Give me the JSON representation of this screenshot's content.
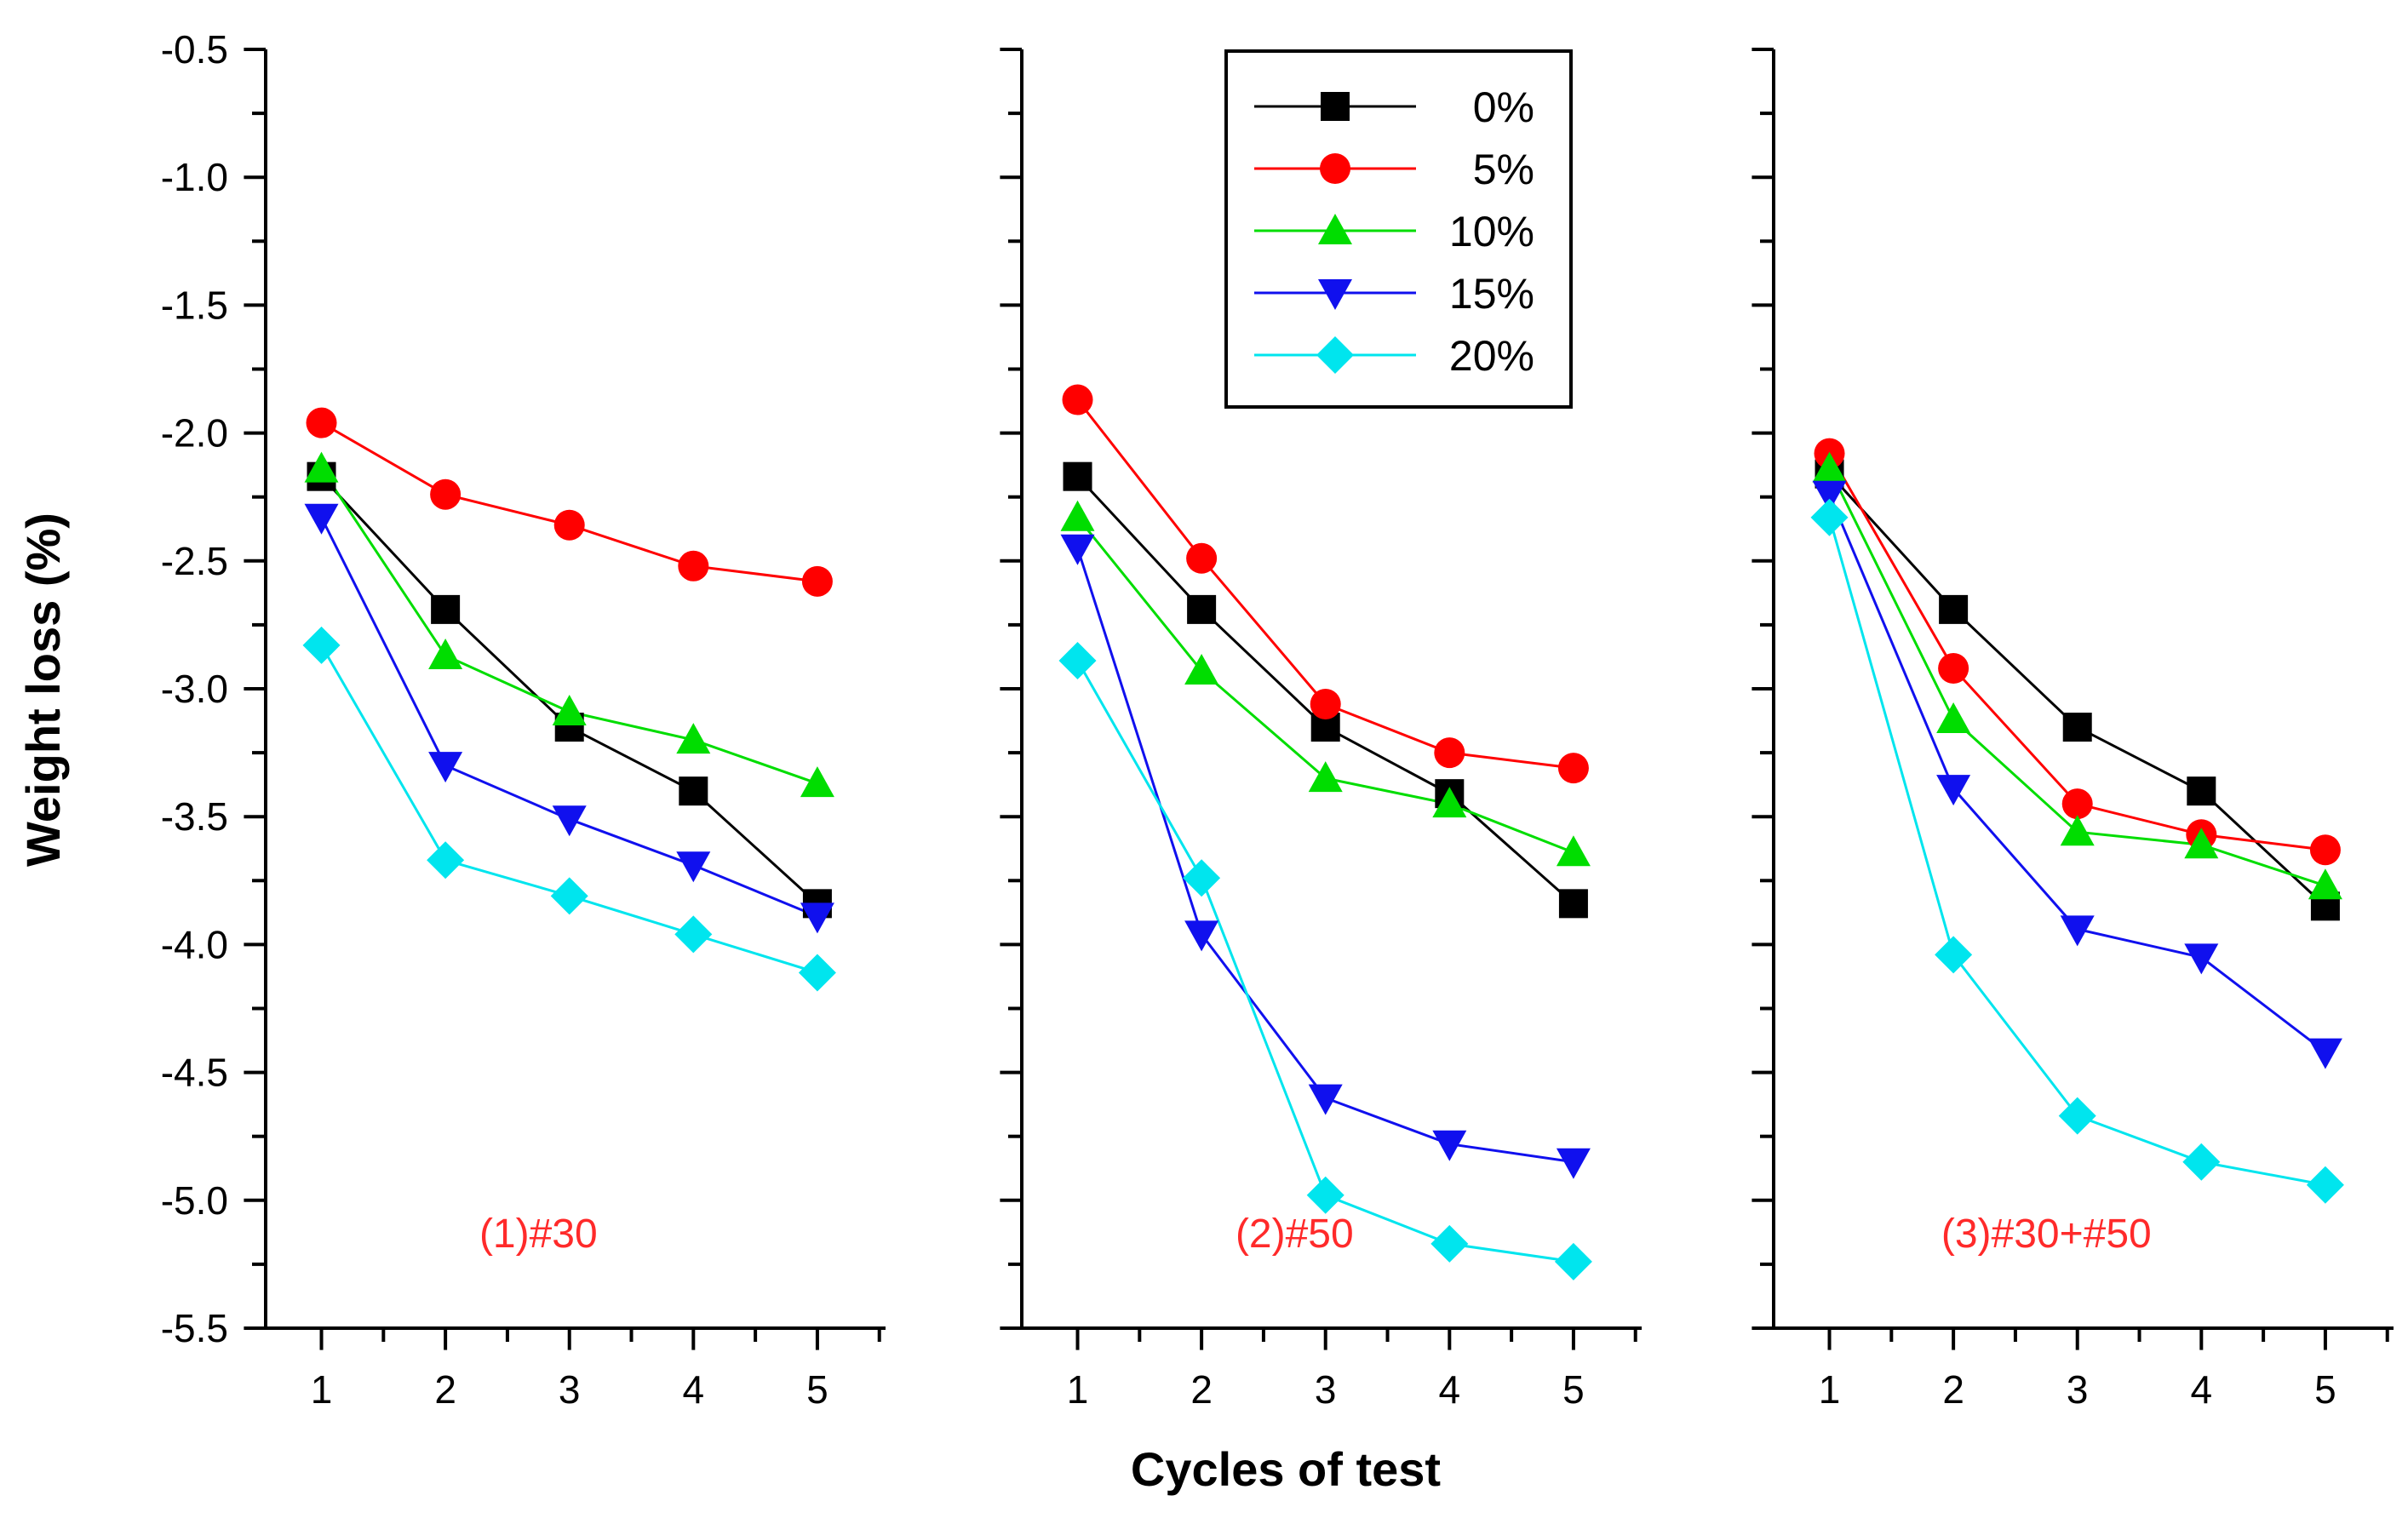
{
  "chart_data": {
    "type": "line",
    "xlabel": "Cycles of test",
    "ylabel": "Weight loss (%)",
    "x": [
      1,
      2,
      3,
      4,
      5
    ],
    "x_ticks": [
      "1",
      "2",
      "3",
      "4",
      "5"
    ],
    "xlim": [
      0.55,
      5.55
    ],
    "ylim": [
      -5.5,
      -0.5
    ],
    "y_ticks": [
      "-0.5",
      "-1.0",
      "-1.5",
      "-2.0",
      "-2.5",
      "-3.0",
      "-3.5",
      "-4.0",
      "-4.5",
      "-5.0",
      "-5.5"
    ],
    "legend_position": "top-right of middle panel",
    "label_color": "#ff2a2a",
    "series_styles": [
      {
        "name": "0%",
        "color": "#000000",
        "marker": "square"
      },
      {
        "name": "5%",
        "color": "#ff0000",
        "marker": "circle"
      },
      {
        "name": "10%",
        "color": "#00dd00",
        "marker": "triangle-up"
      },
      {
        "name": "15%",
        "color": "#1010ee",
        "marker": "triangle-down"
      },
      {
        "name": "20%",
        "color": "#00e5ee",
        "marker": "diamond"
      }
    ],
    "panels": [
      {
        "label": "(1)#30",
        "series": [
          {
            "name": "0%",
            "values": [
              -2.17,
              -2.69,
              -3.15,
              -3.4,
              -3.84
            ]
          },
          {
            "name": "5%",
            "values": [
              -1.96,
              -2.24,
              -2.36,
              -2.52,
              -2.58
            ]
          },
          {
            "name": "10%",
            "values": [
              -2.14,
              -2.87,
              -3.09,
              -3.2,
              -3.37
            ]
          },
          {
            "name": "15%",
            "values": [
              -2.33,
              -3.3,
              -3.51,
              -3.69,
              -3.89
            ]
          },
          {
            "name": "20%",
            "values": [
              -2.83,
              -3.67,
              -3.81,
              -3.96,
              -4.11
            ]
          }
        ]
      },
      {
        "label": "(2)#50",
        "series": [
          {
            "name": "0%",
            "values": [
              -2.17,
              -2.69,
              -3.15,
              -3.41,
              -3.84
            ]
          },
          {
            "name": "5%",
            "values": [
              -1.87,
              -2.49,
              -3.06,
              -3.25,
              -3.31
            ]
          },
          {
            "name": "10%",
            "values": [
              -2.33,
              -2.93,
              -3.35,
              -3.45,
              -3.64
            ]
          },
          {
            "name": "15%",
            "values": [
              -2.45,
              -3.96,
              -4.6,
              -4.78,
              -4.85
            ]
          },
          {
            "name": "20%",
            "values": [
              -2.89,
              -3.74,
              -4.98,
              -5.17,
              -5.24
            ]
          }
        ]
      },
      {
        "label": "(3)#30+#50",
        "series": [
          {
            "name": "0%",
            "values": [
              -2.16,
              -2.69,
              -3.15,
              -3.4,
              -3.85
            ]
          },
          {
            "name": "5%",
            "values": [
              -2.08,
              -2.92,
              -3.45,
              -3.57,
              -3.63
            ]
          },
          {
            "name": "10%",
            "values": [
              -2.14,
              -3.12,
              -3.56,
              -3.61,
              -3.77
            ]
          },
          {
            "name": "15%",
            "values": [
              -2.24,
              -3.39,
              -3.94,
              -4.05,
              -4.42
            ]
          },
          {
            "name": "20%",
            "values": [
              -2.33,
              -4.04,
              -4.67,
              -4.85,
              -4.94
            ]
          }
        ]
      }
    ]
  }
}
